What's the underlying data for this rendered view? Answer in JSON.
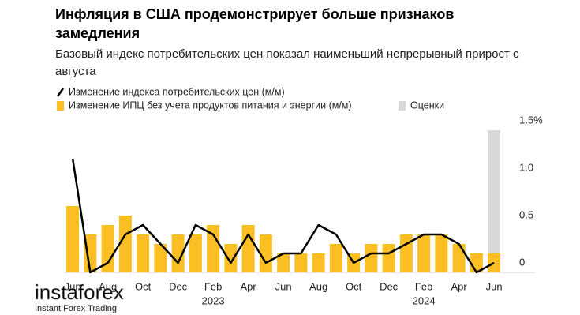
{
  "chart_data": {
    "type": "bar-line",
    "title": "Инфляция в США продемонстрирует больше признаков замедления",
    "subtitle": "Базовый индекс потребительских цен показал наименьший непрерывный прирост с августа",
    "categories": [
      "Jun",
      null,
      "Aug",
      null,
      "Oct",
      null,
      "Dec",
      null,
      "Feb",
      null,
      "Apr",
      null,
      "Jun",
      null,
      "Aug",
      null,
      "Oct",
      null,
      "Dec",
      null,
      "Feb",
      null,
      "Apr",
      null,
      "Jun"
    ],
    "year_labels": [
      null,
      null,
      null,
      null,
      null,
      null,
      null,
      null,
      "2023",
      null,
      null,
      null,
      null,
      null,
      null,
      null,
      null,
      null,
      null,
      null,
      "2024",
      null,
      null,
      null,
      null
    ],
    "series": [
      {
        "name": "Оценки",
        "kind": "bar",
        "color": "#d9d9d9",
        "values": [
          null,
          null,
          null,
          null,
          null,
          null,
          null,
          null,
          null,
          null,
          null,
          null,
          null,
          null,
          null,
          null,
          null,
          null,
          null,
          null,
          null,
          null,
          null,
          null,
          1.5
        ]
      },
      {
        "name": "Изменение ИПЦ без учета продуктов питания и энергии (м/м)",
        "kind": "bar",
        "color": "#fbbf24",
        "values": [
          0.7,
          0.4,
          0.5,
          0.6,
          0.4,
          0.3,
          0.4,
          0.4,
          0.5,
          0.3,
          0.5,
          0.4,
          0.2,
          0.2,
          0.2,
          0.3,
          0.2,
          0.3,
          0.3,
          0.4,
          0.4,
          0.4,
          0.3,
          0.2,
          0.2
        ]
      },
      {
        "name": "Изменение индекса потребительских цен (м/м)",
        "kind": "line",
        "color": "#000000",
        "values": [
          1.2,
          0.0,
          0.1,
          0.4,
          0.5,
          0.3,
          0.1,
          0.5,
          0.4,
          0.1,
          0.4,
          0.1,
          0.2,
          0.2,
          0.5,
          0.4,
          0.1,
          0.2,
          0.2,
          0.3,
          0.4,
          0.4,
          0.3,
          0.0,
          0.1
        ]
      }
    ],
    "legend_order": [
      2,
      1,
      0
    ],
    "ylim": [
      0,
      1.5
    ],
    "yticks": [
      0,
      0.5,
      {
        "value": 1,
        "label": "1.0"
      },
      {
        "value": 1.5,
        "label": "1.5%"
      }
    ],
    "grid": false,
    "watermark": {
      "brand": "instaforex",
      "tagline": "Instant Forex Trading"
    }
  }
}
